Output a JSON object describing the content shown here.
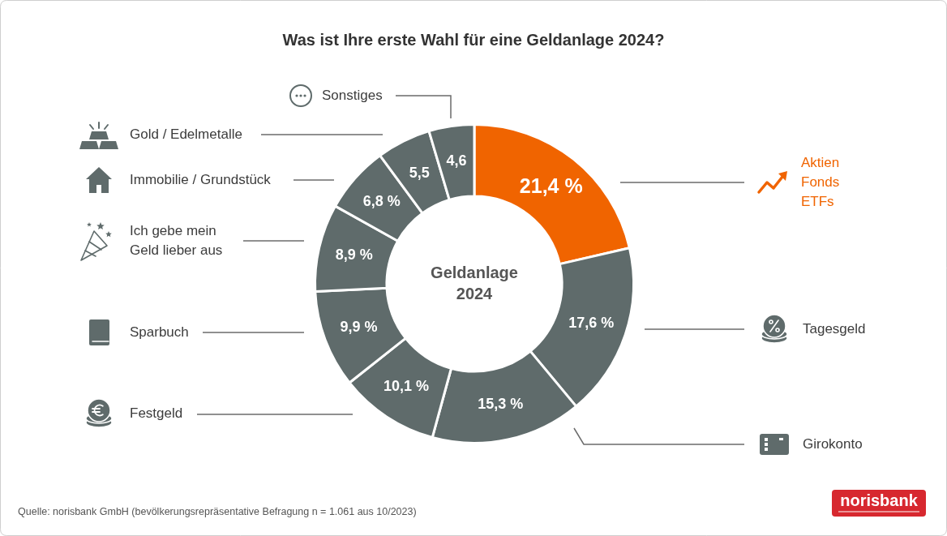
{
  "chart_data": {
    "type": "doughnut",
    "title": "Was ist Ihre erste Wahl für eine Geldanlage 2024?",
    "center_text": [
      "Geldanlage",
      "2024"
    ],
    "categories": [
      [
        "Aktien",
        "Fonds",
        "ETFs"
      ],
      [
        "Tagesgeld"
      ],
      [
        "Girokonto"
      ],
      [
        "Festgeld"
      ],
      [
        "Sparbuch"
      ],
      [
        "Ich gebe mein",
        "Geld lieber aus"
      ],
      [
        "Immobilie / Grundstück"
      ],
      [
        "Gold / Edelmetalle"
      ],
      [
        "Sonstiges"
      ]
    ],
    "values": [
      21.4,
      17.6,
      15.3,
      10.1,
      9.9,
      8.9,
      6.8,
      5.5,
      4.6
    ],
    "value_labels": [
      "21,4 %",
      "17,6 %",
      "15,3 %",
      "10,1 %",
      "9,9 %",
      "8,9 %",
      "6,8 %",
      "5,5",
      "4,6"
    ],
    "colors": [
      "#f06400",
      "#5f6b6b",
      "#5f6b6b",
      "#5f6b6b",
      "#5f6b6b",
      "#5f6b6b",
      "#5f6b6b",
      "#5f6b6b",
      "#5f6b6b"
    ],
    "data_labels": true,
    "source": "Quelle: norisbank GmbH (bevölkerungsrepräsentative Befragung n = 1.061 aus 10/2023)",
    "logo": "norisbank"
  }
}
